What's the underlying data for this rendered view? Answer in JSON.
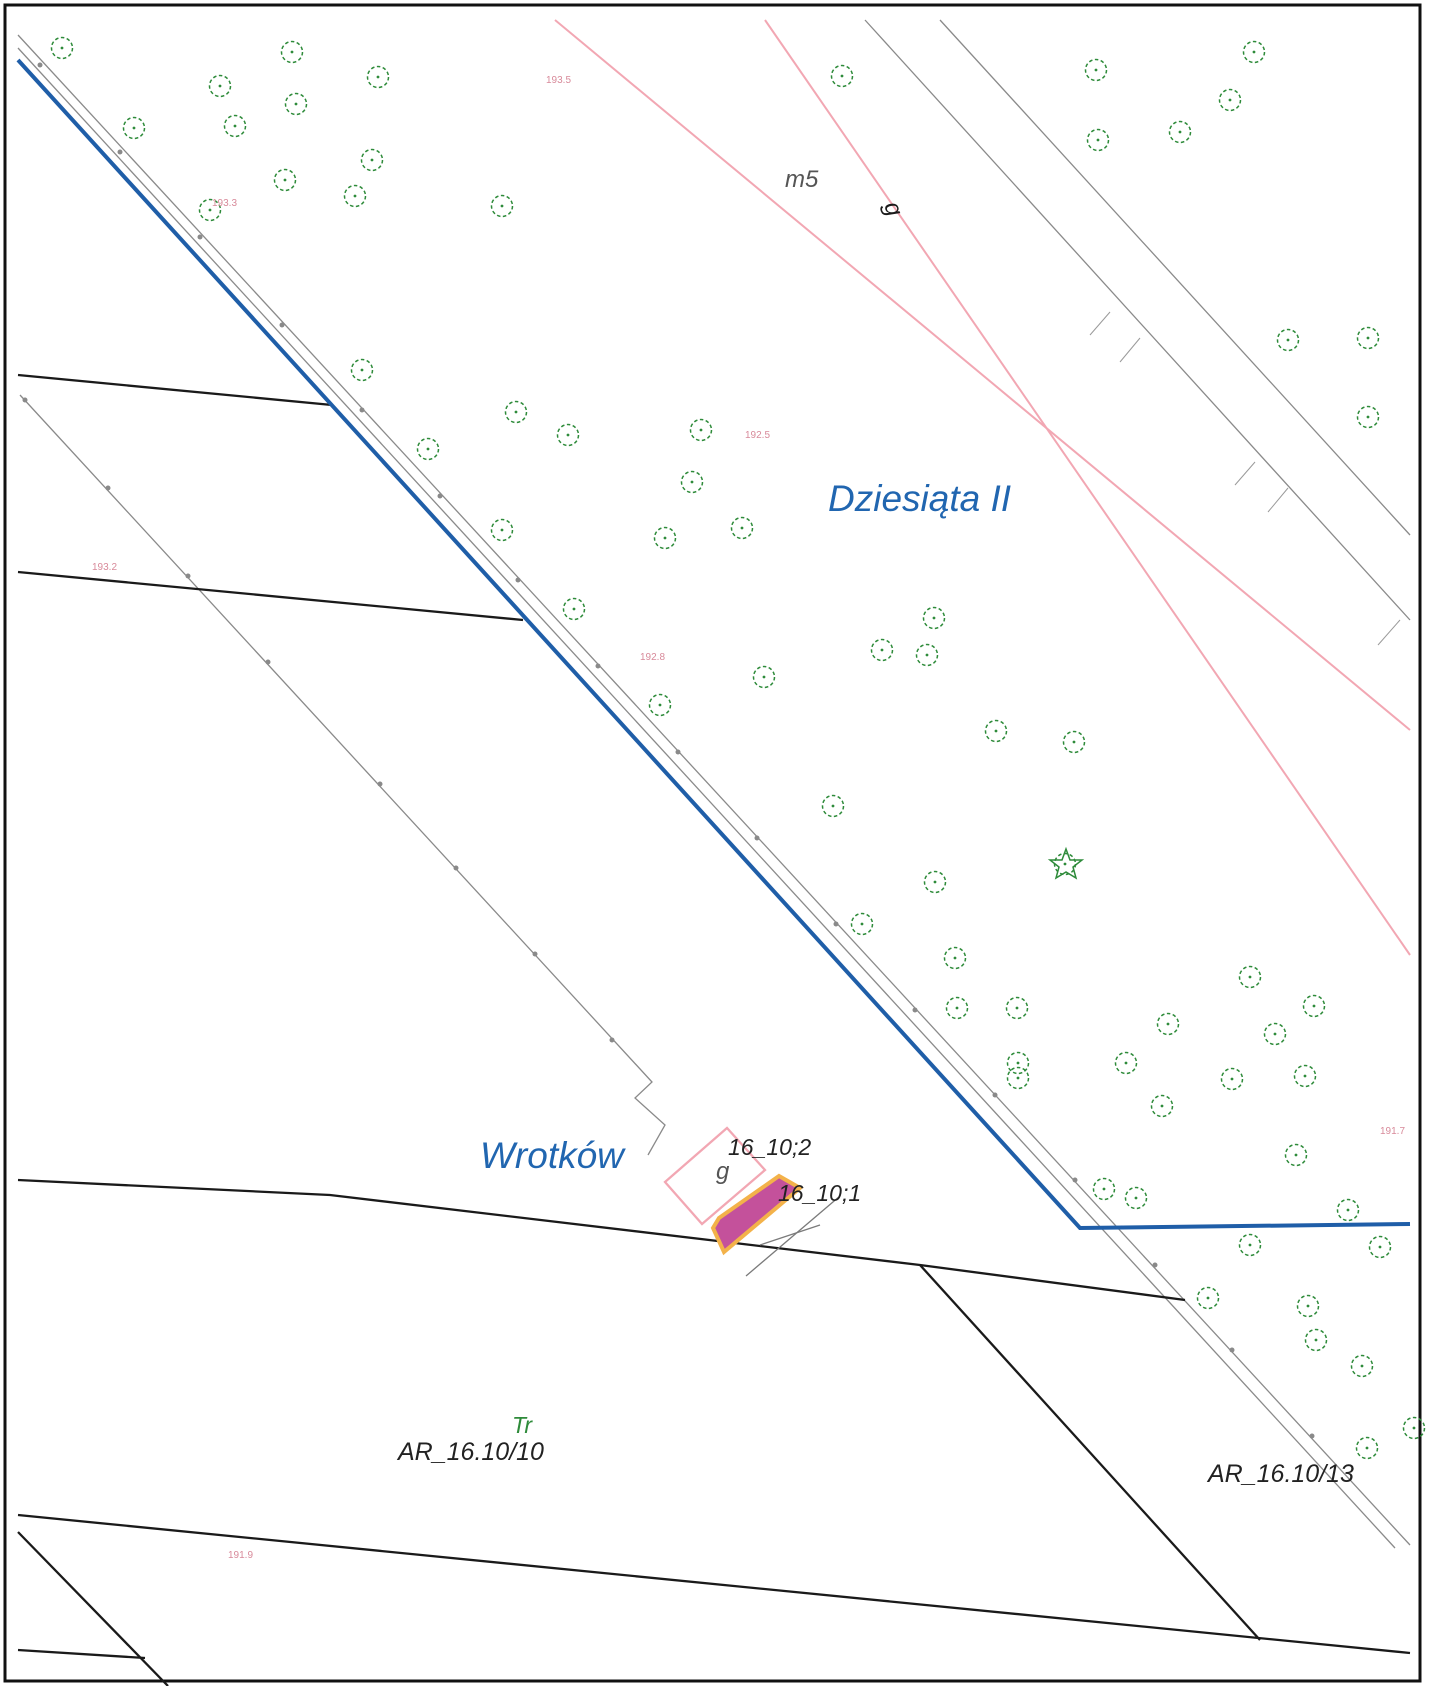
{
  "map": {
    "colors": {
      "paper": "#ffffff",
      "frame": "#111111",
      "boundary": "#1f5ea8",
      "parcel_line": "#1a1a1a",
      "gray_line": "#8a8a8a",
      "road_edge": "#f2a7b3",
      "tree": "#2e8b3a",
      "highlight_fill": "#c4519b",
      "highlight_stroke": "#f3b24a"
    },
    "localities": {
      "north": "Dziesiąta II",
      "south": "Wrotków"
    },
    "parcels": {
      "southwest": "AR_16.10/10",
      "southeast": "AR_16.10/13",
      "object_1": "16_10;1",
      "object_2": "16_10;2"
    },
    "land_use": "Tr",
    "symbols": {
      "road_class": "m5",
      "road_code": "g",
      "building": "g"
    },
    "elevations": [
      "193.5",
      "193.3",
      "192.5",
      "192.8",
      "193.2",
      "191.7",
      "191.9"
    ],
    "icons": {
      "tree": "deciduous-tree-icon",
      "special": "star-icon"
    }
  }
}
